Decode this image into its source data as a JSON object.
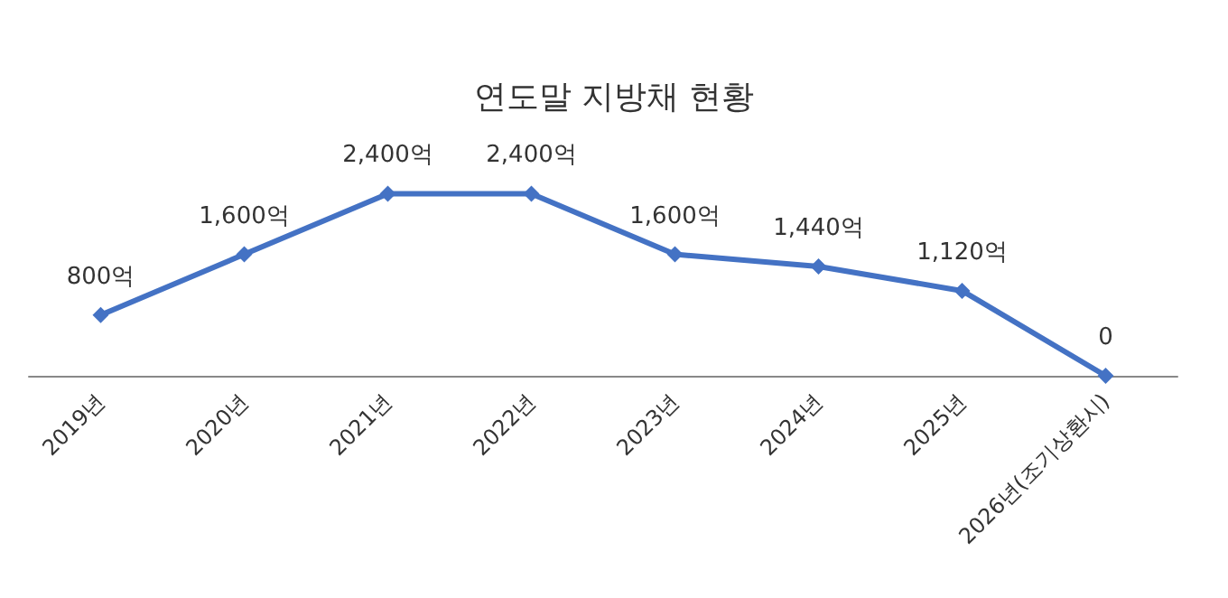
{
  "chart_data": {
    "type": "line",
    "title": "연도말 지방채 현황",
    "categories": [
      "2019년",
      "2020년",
      "2021년",
      "2022년",
      "2023년",
      "2024년",
      "2025년",
      "2026년(조기상환시)"
    ],
    "series": [
      {
        "color": "#4472c4",
        "values": [
          800,
          1600,
          2400,
          2400,
          1600,
          1440,
          1120,
          0
        ],
        "value_labels": [
          "800억",
          "1,600억",
          "2,400억",
          "2,400억",
          "1,600억",
          "1,440억",
          "1,120억",
          "0"
        ]
      }
    ],
    "marker": "diamond",
    "grid": false
  }
}
